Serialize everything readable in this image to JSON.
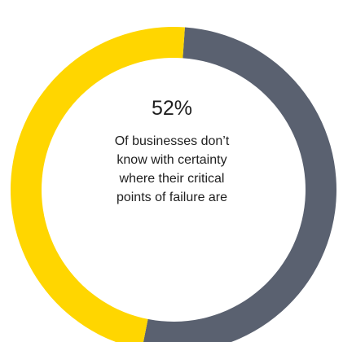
{
  "chart_data": {
    "type": "pie",
    "style": "donut",
    "values": [
      52,
      48
    ],
    "colors": [
      "#5a6170",
      "#ffd600"
    ],
    "center_value": "52%",
    "center_text_lines": [
      "Of businesses don’t",
      "know with certainty",
      "where their critical",
      "points of failure are"
    ]
  }
}
